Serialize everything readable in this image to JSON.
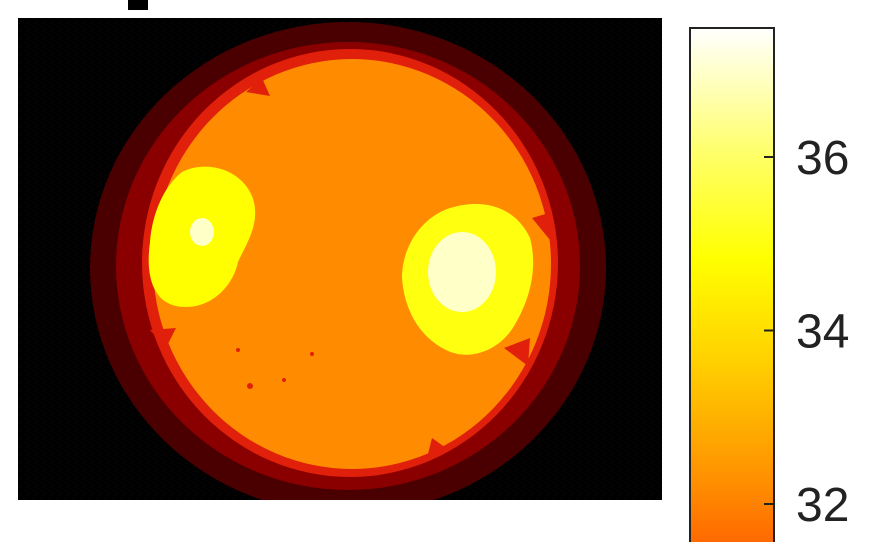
{
  "chart_data": {
    "type": "heatmap",
    "title": "",
    "xlabel": "",
    "ylabel": "",
    "colormap": "hot",
    "colorbar": {
      "ticks": [
        32,
        34,
        36
      ],
      "tick_labels": [
        "32",
        "34",
        "36"
      ],
      "range": [
        31.5,
        37.2
      ]
    },
    "regions": [
      {
        "name": "background",
        "value": 31.0,
        "color": "#000000"
      },
      {
        "name": "outer-halo",
        "value": 31.3,
        "color": "#4a0000"
      },
      {
        "name": "rim",
        "value": 31.6,
        "color": "#e0200a"
      },
      {
        "name": "disk",
        "value": 32.4,
        "color": "#ff8c00"
      },
      {
        "name": "left-warm-spot",
        "value": 35.2,
        "color": "#ffff00"
      },
      {
        "name": "left-hot-core",
        "value": 36.5,
        "color": "#ffffc8"
      },
      {
        "name": "right-warm-spot",
        "value": 35.2,
        "color": "#ffff10"
      },
      {
        "name": "right-hot-core",
        "value": 36.8,
        "color": "#ffffc8"
      }
    ]
  }
}
